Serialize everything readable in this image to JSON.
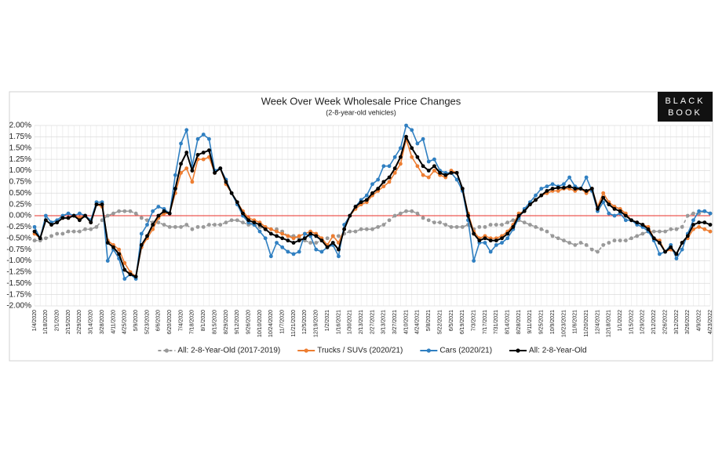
{
  "chart_data": {
    "type": "line",
    "title": "Week Over Week Wholesale Price Changes",
    "subtitle": "(2-8-year-old vehicles)",
    "logo": [
      "BLACK",
      "BOOK"
    ],
    "grid": true,
    "zero_line_color": "#e8302a",
    "legend": "bottom",
    "ylim": [
      -2,
      2
    ],
    "yticks": [
      {
        "value": 2,
        "label": "2.00%"
      },
      {
        "value": 1.75,
        "label": "1.75%"
      },
      {
        "value": 1.5,
        "label": "1.50%"
      },
      {
        "value": 1.25,
        "label": "1.25%"
      },
      {
        "value": 1,
        "label": "1.00%"
      },
      {
        "value": 0.75,
        "label": "0.75%"
      },
      {
        "value": 0.5,
        "label": "0.50%"
      },
      {
        "value": 0.25,
        "label": "0.25%"
      },
      {
        "value": 0,
        "label": "0.00%"
      },
      {
        "value": -0.25,
        "label": "-0.25%"
      },
      {
        "value": -0.5,
        "label": "-0.50%"
      },
      {
        "value": -0.75,
        "label": "-0.75%"
      },
      {
        "value": -1,
        "label": "-1.00%"
      },
      {
        "value": -1.25,
        "label": "-1.25%"
      },
      {
        "value": -1.5,
        "label": "-1.50%"
      },
      {
        "value": -1.75,
        "label": "-1.75%"
      },
      {
        "value": -2,
        "label": "-2.00%"
      }
    ],
    "categories": [
      "1/4/2020",
      null,
      "1/18/2020",
      null,
      "2/1/2020",
      null,
      "2/15/2020",
      null,
      "2/29/2020",
      null,
      "3/14/2020",
      null,
      "3/28/2020",
      null,
      "4/11/2020",
      null,
      "4/25/2020",
      null,
      "5/9/2020",
      null,
      "5/23/2020",
      null,
      "6/6/2020",
      null,
      "6/20/2020",
      null,
      "7/4/2020",
      null,
      "7/18/2020",
      null,
      "8/1/2020",
      null,
      "8/15/2020",
      null,
      "8/29/2020",
      null,
      "9/12/2020",
      null,
      "9/26/2020",
      null,
      "10/10/2020",
      null,
      "10/24/2020",
      null,
      "11/7/2020",
      null,
      "11/21/2020",
      null,
      "12/5/2020",
      null,
      "12/19/2020",
      null,
      "1/2/2021",
      null,
      "1/16/2021",
      null,
      "1/30/2021",
      null,
      "2/13/2021",
      null,
      "2/27/2021",
      null,
      "3/13/2021",
      null,
      "3/27/2021",
      null,
      "4/10/2021",
      null,
      "4/24/2021",
      null,
      "5/8/2021",
      null,
      "5/22/2021",
      null,
      "6/5/2021",
      null,
      "6/19/2021",
      null,
      "7/3/2021",
      null,
      "7/17/2021",
      null,
      "7/31/2021",
      null,
      "8/14/2021",
      null,
      "8/28/2021",
      null,
      "9/11/2021",
      null,
      "9/25/2021",
      null,
      "10/9/2021",
      null,
      "10/23/2021",
      null,
      "11/6/2021",
      null,
      "11/20/2021",
      null,
      "12/4/2021",
      null,
      "12/18/2021",
      null,
      "1/1/2022",
      null,
      "1/15/2022",
      null,
      "1/29/2022",
      null,
      "2/12/2022",
      null,
      "2/26/2022",
      null,
      "3/12/2022",
      null,
      "3/26/2022",
      null,
      "4/9/2022",
      null,
      "4/23/2022"
    ],
    "series": [
      {
        "name": "All: 2-8-Year-Old (2017-2019)",
        "color": "#999999",
        "dash": true,
        "values": [
          -0.55,
          -0.55,
          -0.5,
          -0.45,
          -0.4,
          -0.4,
          -0.35,
          -0.35,
          -0.35,
          -0.3,
          -0.3,
          -0.25,
          -0.1,
          0,
          0.05,
          0.1,
          0.1,
          0.1,
          0.05,
          -0.05,
          -0.1,
          -0.15,
          -0.15,
          -0.2,
          -0.25,
          -0.25,
          -0.25,
          -0.2,
          -0.3,
          -0.25,
          -0.25,
          -0.2,
          -0.2,
          -0.2,
          -0.15,
          -0.1,
          -0.1,
          -0.15,
          -0.2,
          -0.2,
          -0.25,
          -0.3,
          -0.3,
          -0.3,
          -0.35,
          -0.45,
          -0.45,
          -0.5,
          -0.55,
          -0.6,
          -0.6,
          -0.55,
          -0.5,
          -0.45,
          -0.45,
          -0.4,
          -0.35,
          -0.35,
          -0.3,
          -0.3,
          -0.3,
          -0.25,
          -0.2,
          -0.1,
          0,
          0.05,
          0.1,
          0.1,
          0.05,
          -0.05,
          -0.1,
          -0.15,
          -0.15,
          -0.2,
          -0.25,
          -0.25,
          -0.25,
          -0.2,
          -0.3,
          -0.25,
          -0.25,
          -0.2,
          -0.2,
          -0.2,
          -0.15,
          -0.1,
          -0.1,
          -0.15,
          -0.2,
          -0.25,
          -0.3,
          -0.35,
          -0.45,
          -0.5,
          -0.55,
          -0.6,
          -0.65,
          -0.6,
          -0.65,
          -0.75,
          -0.8,
          -0.65,
          -0.6,
          -0.55,
          -0.55,
          -0.55,
          -0.5,
          -0.45,
          -0.4,
          -0.35,
          -0.35,
          -0.35,
          -0.35,
          -0.3,
          -0.3,
          -0.25,
          0,
          0.05,
          0.05,
          0.1,
          0.05
        ]
      },
      {
        "name": "Trucks / SUVs (2020/21)",
        "color": "#ed7d31",
        "values": [
          -0.4,
          -0.5,
          -0.1,
          -0.2,
          -0.15,
          -0.05,
          -0.05,
          0,
          -0.05,
          0,
          -0.15,
          0.25,
          0.2,
          -0.55,
          -0.65,
          -0.75,
          -1.05,
          -1.25,
          -1.35,
          -0.7,
          -0.5,
          -0.3,
          -0.05,
          0.05,
          0.05,
          0.5,
          0.95,
          1.05,
          0.75,
          1.25,
          1.25,
          1.3,
          0.95,
          1.05,
          0.7,
          0.5,
          0.3,
          0.1,
          -0.05,
          -0.1,
          -0.15,
          -0.25,
          -0.3,
          -0.35,
          -0.4,
          -0.45,
          -0.5,
          -0.45,
          -0.4,
          -0.35,
          -0.4,
          -0.5,
          -0.65,
          -0.45,
          -0.6,
          -0.3,
          0,
          0.15,
          0.25,
          0.3,
          0.45,
          0.55,
          0.65,
          0.75,
          0.95,
          1.15,
          1.7,
          1.3,
          1.1,
          0.9,
          0.85,
          1,
          0.9,
          0.85,
          1,
          0.95,
          0.6,
          0.05,
          -0.35,
          -0.5,
          -0.45,
          -0.5,
          -0.5,
          -0.45,
          -0.35,
          -0.2,
          0.05,
          0.1,
          0.25,
          0.35,
          0.45,
          0.5,
          0.55,
          0.55,
          0.6,
          0.6,
          0.55,
          0.6,
          0.5,
          0.6,
          0.2,
          0.5,
          0.3,
          0.2,
          0.15,
          0.05,
          -0.1,
          -0.15,
          -0.2,
          -0.25,
          -0.5,
          -0.55,
          -0.8,
          -0.75,
          -0.85,
          -0.6,
          -0.5,
          -0.3,
          -0.25,
          -0.3,
          -0.35
        ]
      },
      {
        "name": "Cars (2020/21)",
        "color": "#2f7fc1",
        "values": [
          -0.25,
          -0.5,
          0,
          -0.15,
          -0.1,
          0,
          0.05,
          0,
          0.05,
          0,
          -0.1,
          0.3,
          0.3,
          -1,
          -0.75,
          -0.95,
          -1.4,
          -1.3,
          -1.4,
          -0.4,
          -0.2,
          0.1,
          0.2,
          0.15,
          0.05,
          0.9,
          1.6,
          1.9,
          1.1,
          1.7,
          1.8,
          1.7,
          1,
          1.05,
          0.8,
          0.5,
          0.25,
          0,
          -0.15,
          -0.2,
          -0.35,
          -0.5,
          -0.9,
          -0.6,
          -0.7,
          -0.8,
          -0.85,
          -0.8,
          -0.4,
          -0.45,
          -0.75,
          -0.8,
          -0.7,
          -0.65,
          -0.9,
          -0.2,
          0,
          0.2,
          0.35,
          0.45,
          0.7,
          0.8,
          1.1,
          1.1,
          1.3,
          1.5,
          2,
          1.9,
          1.6,
          1.7,
          1.2,
          1.25,
          1,
          0.95,
          0.95,
          0.8,
          0.55,
          -0.1,
          -1,
          -0.6,
          -0.6,
          -0.8,
          -0.65,
          -0.6,
          -0.5,
          -0.3,
          -0.05,
          0.15,
          0.3,
          0.45,
          0.6,
          0.65,
          0.7,
          0.65,
          0.7,
          0.85,
          0.65,
          0.6,
          0.85,
          0.55,
          0.1,
          0.3,
          0.05,
          0,
          0.05,
          -0.1,
          -0.1,
          -0.2,
          -0.25,
          -0.35,
          -0.55,
          -0.85,
          -0.8,
          -0.65,
          -0.95,
          -0.75,
          -0.4,
          -0.1,
          0.1,
          0.1,
          0.05
        ]
      },
      {
        "name": "All: 2-8-Year-Old",
        "color": "#000000",
        "values": [
          -0.35,
          -0.5,
          -0.1,
          -0.2,
          -0.15,
          -0.05,
          -0.05,
          0,
          -0.1,
          0,
          -0.15,
          0.25,
          0.25,
          -0.6,
          -0.7,
          -0.85,
          -1.2,
          -1.3,
          -1.35,
          -0.65,
          -0.45,
          -0.2,
          0,
          0.1,
          0.05,
          0.6,
          1.15,
          1.4,
          1,
          1.35,
          1.4,
          1.45,
          0.95,
          1.05,
          0.75,
          0.5,
          0.3,
          0.05,
          -0.1,
          -0.15,
          -0.2,
          -0.3,
          -0.4,
          -0.45,
          -0.5,
          -0.55,
          -0.6,
          -0.55,
          -0.5,
          -0.4,
          -0.45,
          -0.55,
          -0.7,
          -0.6,
          -0.75,
          -0.3,
          0,
          0.2,
          0.3,
          0.35,
          0.5,
          0.6,
          0.75,
          0.85,
          1.05,
          1.3,
          1.75,
          1.5,
          1.3,
          1.1,
          1,
          1.1,
          0.95,
          0.9,
          0.95,
          0.95,
          0.6,
          0,
          -0.4,
          -0.55,
          -0.5,
          -0.55,
          -0.55,
          -0.5,
          -0.4,
          -0.25,
          0,
          0.1,
          0.25,
          0.35,
          0.45,
          0.55,
          0.6,
          0.62,
          0.62,
          0.65,
          0.6,
          0.6,
          0.55,
          0.6,
          0.15,
          0.4,
          0.25,
          0.15,
          0.1,
          0,
          -0.1,
          -0.15,
          -0.2,
          -0.3,
          -0.5,
          -0.6,
          -0.8,
          -0.7,
          -0.85,
          -0.6,
          -0.45,
          -0.2,
          -0.15,
          -0.15,
          -0.2
        ]
      }
    ]
  }
}
